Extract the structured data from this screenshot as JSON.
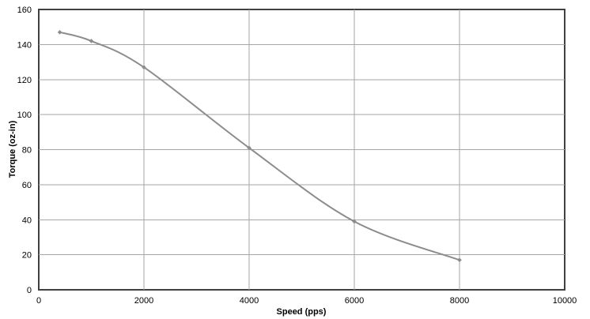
{
  "chart_data": {
    "type": "line",
    "title": "",
    "xlabel": "Speed (pps)",
    "ylabel": "Torque (oz-in)",
    "xlim": [
      0,
      10000
    ],
    "ylim": [
      0,
      160
    ],
    "xticks": [
      0,
      2000,
      4000,
      6000,
      8000,
      10000
    ],
    "yticks": [
      0,
      20,
      40,
      60,
      80,
      100,
      120,
      140,
      160
    ],
    "grid": true,
    "legend": "none",
    "series": [
      {
        "color": "#8c8c8c",
        "smooth": true,
        "x": [
          400,
          1000,
          2000,
          4000,
          6000,
          8000
        ],
        "y": [
          147,
          142,
          127,
          81,
          39,
          17
        ]
      }
    ]
  }
}
